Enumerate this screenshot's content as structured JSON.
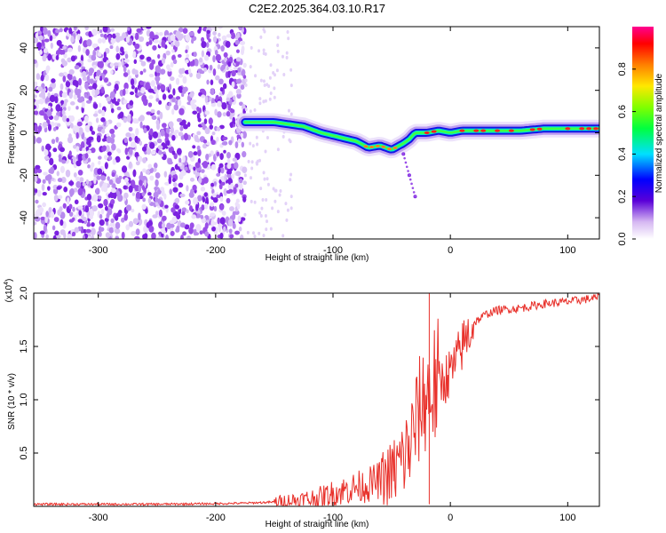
{
  "title": "C2E2.2025.364.03.10.R17",
  "colors": {
    "axis": "#000000",
    "snr_line": "#e8302a",
    "speckle": "#7b22e0",
    "speckle_light": "#d9c3f5"
  },
  "chart_data": [
    {
      "type": "heatmap",
      "name": "spectrogram",
      "title": "C2E2.2025.364.03.10.R17",
      "xlabel": "Height of straight line (km)",
      "ylabel": "Frequency (Hz)",
      "xlim": [
        -355,
        127
      ],
      "ylim": [
        -50,
        50
      ],
      "xticks": [
        -300,
        -200,
        -100,
        0,
        100
      ],
      "yticks": [
        -40,
        -20,
        0,
        20,
        40
      ],
      "xtick_labels": [
        "-300",
        "-200",
        "-100",
        "0",
        "100"
      ],
      "ytick_labels": [
        "-40",
        "-20",
        "0",
        "20",
        "40"
      ],
      "noise_region_x": [
        -355,
        -175
      ],
      "signal_trace": {
        "x": [
          -175,
          -150,
          -125,
          -110,
          -95,
          -80,
          -70,
          -60,
          -50,
          -40,
          -35,
          -30,
          -20,
          -10,
          0,
          10,
          20,
          40,
          60,
          80,
          100,
          127
        ],
        "y": [
          5,
          5,
          3,
          0,
          -2,
          -4,
          -7,
          -6,
          -8,
          -5,
          -3,
          0,
          0,
          1,
          0,
          1,
          1,
          1,
          1,
          2,
          2,
          2
        ]
      },
      "branch_trace": {
        "x": [
          -40,
          -35,
          -30
        ],
        "y": [
          -10,
          -20,
          -30
        ]
      },
      "colorbar": {
        "label": "Normalized spectral amplitude",
        "range": [
          0,
          1
        ],
        "ticks": [
          0.0,
          0.2,
          0.4,
          0.6,
          0.8
        ],
        "tick_labels": [
          "0.0",
          "0.2",
          "0.4",
          "0.6",
          "0.8"
        ]
      }
    },
    {
      "type": "line",
      "name": "snr",
      "xlabel": "Height of straight line (km)",
      "ylabel": "SNR (10 * v/v)",
      "scale_label": "(x10",
      "scale_exponent": "4",
      "xlim": [
        -355,
        127
      ],
      "ylim": [
        0,
        2.0
      ],
      "xticks": [
        -300,
        -200,
        -100,
        0,
        100
      ],
      "yticks": [
        0.5,
        1.0,
        1.5,
        2.0
      ],
      "xtick_labels": [
        "-300",
        "-200",
        "-100",
        "0",
        "100"
      ],
      "ytick_labels": [
        "0.5",
        "1.0",
        "1.5",
        "2.0"
      ],
      "x": [
        -355,
        -300,
        -250,
        -200,
        -175,
        -150,
        -125,
        -110,
        -100,
        -90,
        -80,
        -70,
        -60,
        -50,
        -40,
        -35,
        -30,
        -25,
        -20,
        -15,
        -10,
        -5,
        0,
        5,
        10,
        20,
        30,
        40,
        60,
        80,
        100,
        127
      ],
      "y": [
        0.02,
        0.02,
        0.02,
        0.025,
        0.03,
        0.04,
        0.06,
        0.08,
        0.12,
        0.15,
        0.18,
        0.2,
        0.25,
        0.3,
        0.45,
        0.55,
        0.75,
        0.95,
        1.05,
        1.1,
        1.15,
        1.2,
        1.25,
        1.35,
        1.5,
        1.72,
        1.8,
        1.84,
        1.86,
        1.9,
        1.92,
        1.96
      ]
    }
  ]
}
